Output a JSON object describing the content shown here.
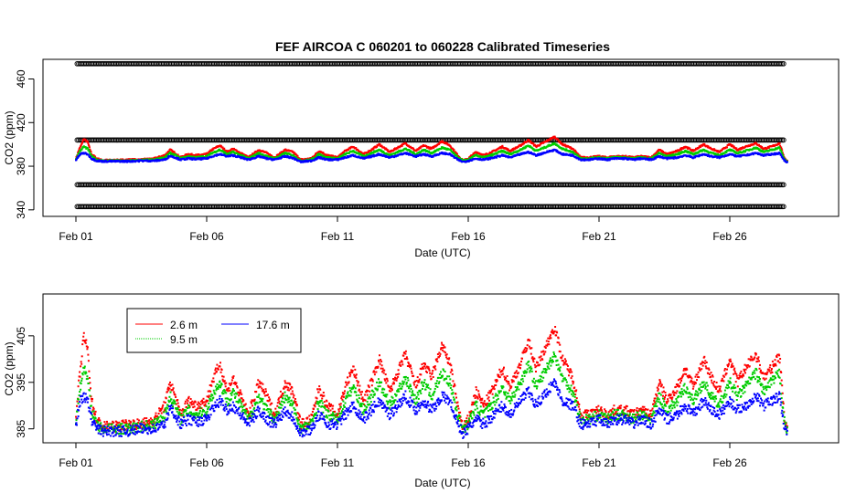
{
  "title": "FEF   AIRCOA  C    060201  to  060228   Calibrated Timeseries",
  "colors": {
    "red": "#ff0000",
    "green": "#00cc00",
    "blue": "#0000ff",
    "black": "#000000"
  },
  "chart_data": [
    {
      "type": "scatter",
      "id": "top",
      "title": "FEF   AIRCOA  C    060201  to  060228   Calibrated Timeseries",
      "xlabel": "Date (UTC)",
      "ylabel": "CO2 (ppm)",
      "xlim": [
        1,
        29
      ],
      "ylim": [
        334,
        478
      ],
      "xticks": [
        1,
        6,
        11,
        16,
        21,
        26
      ],
      "xtick_labels": [
        "Feb 01",
        "Feb 06",
        "Feb 11",
        "Feb 16",
        "Feb 21",
        "Feb 26"
      ],
      "yticks": [
        340,
        380,
        420,
        460
      ],
      "ytick_labels": [
        "340",
        "380",
        "420",
        "460"
      ],
      "calibration_levels": [
        343,
        363,
        404,
        474
      ],
      "calibration_x_range": [
        1.05,
        28.1
      ],
      "grid": false
    },
    {
      "type": "scatter",
      "id": "bottom",
      "xlabel": "Date (UTC)",
      "ylabel": "CO2 (ppm)",
      "xlim": [
        1,
        29
      ],
      "ylim": [
        382,
        414
      ],
      "xticks": [
        1,
        6,
        11,
        16,
        21,
        26
      ],
      "xtick_labels": [
        "Feb 01",
        "Feb 06",
        "Feb 11",
        "Feb 16",
        "Feb 21",
        "Feb 26"
      ],
      "yticks": [
        385,
        395,
        405
      ],
      "ytick_labels": [
        "385",
        "395",
        "405"
      ],
      "grid": false,
      "legend": {
        "placement": "top-left",
        "entries": [
          {
            "label": "2.6 m",
            "color": "#ff0000"
          },
          {
            "label": "9.5 m",
            "color": "#00cc00"
          },
          {
            "label": "17.6 m",
            "color": "#0000ff"
          }
        ]
      },
      "series": [
        {
          "name": "17.6 m",
          "color": "#0000ff",
          "x": [
            1.0,
            1.1,
            1.2,
            1.3,
            1.45,
            1.6,
            1.8,
            2.0,
            2.5,
            3.0,
            3.5,
            4.0,
            4.4,
            4.6,
            4.8,
            5.0,
            5.3,
            5.6,
            6.0,
            6.2,
            6.5,
            6.8,
            7.0,
            7.3,
            7.6,
            8.0,
            8.3,
            8.6,
            9.0,
            9.3,
            9.6,
            10.0,
            10.3,
            10.6,
            11.0,
            11.3,
            11.6,
            12.0,
            12.3,
            12.6,
            13.0,
            13.3,
            13.6,
            14.0,
            14.3,
            14.6,
            15.0,
            15.3,
            15.6,
            15.8,
            16.0,
            16.3,
            16.6,
            17.0,
            17.3,
            17.6,
            18.0,
            18.3,
            18.6,
            19.0,
            19.3,
            19.6,
            20.0,
            20.3,
            20.6,
            21.0,
            21.3,
            21.6,
            22.0,
            22.3,
            22.6,
            23.0,
            23.3,
            23.6,
            24.0,
            24.3,
            24.6,
            25.0,
            25.3,
            25.6,
            26.0,
            26.3,
            26.6,
            27.0,
            27.3,
            27.6,
            27.9,
            28.1,
            28.2
          ],
          "y": [
            385.5,
            389,
            391.5,
            392,
            391,
            387,
            385,
            384.5,
            384.5,
            384.5,
            385,
            385,
            386,
            389.5,
            388,
            386,
            387,
            386.5,
            387,
            389,
            391,
            389,
            390,
            388,
            386,
            389,
            387,
            386,
            389,
            387.5,
            384,
            385,
            388,
            386,
            386,
            388,
            390,
            387,
            389,
            391,
            388,
            390,
            392,
            389,
            391,
            389,
            392,
            391,
            386,
            384,
            385,
            387,
            386,
            388,
            390,
            388,
            391,
            393,
            390,
            393,
            395,
            391,
            390,
            386,
            386,
            387,
            386,
            387,
            387,
            386,
            387,
            386,
            389,
            387,
            388,
            390,
            388,
            391,
            389,
            388,
            391,
            389,
            390,
            392,
            390,
            391,
            392,
            385,
            384
          ]
        },
        {
          "name": "9.5 m",
          "color": "#00cc00",
          "x": [
            1.0,
            1.1,
            1.2,
            1.3,
            1.45,
            1.6,
            1.8,
            2.0,
            2.5,
            3.0,
            3.5,
            4.0,
            4.4,
            4.6,
            4.8,
            5.0,
            5.3,
            5.6,
            6.0,
            6.2,
            6.5,
            6.8,
            7.0,
            7.3,
            7.6,
            8.0,
            8.3,
            8.6,
            9.0,
            9.3,
            9.6,
            10.0,
            10.3,
            10.6,
            11.0,
            11.3,
            11.6,
            12.0,
            12.3,
            12.6,
            13.0,
            13.3,
            13.6,
            14.0,
            14.3,
            14.6,
            15.0,
            15.3,
            15.6,
            15.8,
            16.0,
            16.3,
            16.6,
            17.0,
            17.3,
            17.6,
            18.0,
            18.3,
            18.6,
            19.0,
            19.3,
            19.6,
            20.0,
            20.3,
            20.6,
            21.0,
            21.3,
            21.6,
            22.0,
            22.3,
            22.6,
            23.0,
            23.3,
            23.6,
            24.0,
            24.3,
            24.6,
            25.0,
            25.3,
            25.6,
            26.0,
            26.3,
            26.6,
            27.0,
            27.3,
            27.6,
            27.9,
            28.1,
            28.2
          ],
          "y": [
            386,
            392,
            395,
            398,
            396,
            389,
            386,
            385,
            385,
            385,
            385.5,
            386,
            388,
            392,
            390,
            387,
            389,
            388,
            389,
            392,
            395,
            391,
            393,
            390,
            387,
            392,
            389,
            387,
            392,
            390,
            385,
            386,
            391,
            388,
            387,
            391,
            394,
            389,
            392,
            395,
            390,
            393,
            396,
            391,
            395,
            392,
            397,
            395,
            388,
            385,
            386,
            390,
            388,
            391,
            394,
            391,
            395,
            399,
            394,
            398,
            401,
            396,
            393,
            387,
            387,
            388,
            387,
            388,
            388,
            387,
            388,
            387,
            392,
            389,
            391,
            394,
            391,
            395,
            392,
            390,
            395,
            392,
            394,
            397,
            393,
            395,
            397,
            386,
            384.5
          ]
        },
        {
          "name": "2.6 m",
          "color": "#ff0000",
          "x": [
            1.0,
            1.1,
            1.2,
            1.3,
            1.45,
            1.6,
            1.8,
            2.0,
            2.5,
            3.0,
            3.5,
            4.0,
            4.4,
            4.6,
            4.8,
            5.0,
            5.3,
            5.6,
            6.0,
            6.2,
            6.5,
            6.8,
            7.0,
            7.3,
            7.6,
            8.0,
            8.3,
            8.6,
            9.0,
            9.3,
            9.6,
            10.0,
            10.3,
            10.6,
            11.0,
            11.3,
            11.6,
            12.0,
            12.3,
            12.6,
            13.0,
            13.3,
            13.6,
            14.0,
            14.3,
            14.6,
            15.0,
            15.3,
            15.6,
            15.8,
            16.0,
            16.3,
            16.6,
            17.0,
            17.3,
            17.6,
            18.0,
            18.3,
            18.6,
            19.0,
            19.3,
            19.6,
            20.0,
            20.3,
            20.6,
            21.0,
            21.3,
            21.6,
            22.0,
            22.3,
            22.6,
            23.0,
            23.3,
            23.6,
            24.0,
            24.3,
            24.6,
            25.0,
            25.3,
            25.6,
            26.0,
            26.3,
            26.6,
            27.0,
            27.3,
            27.6,
            27.9,
            28.1,
            28.2
          ],
          "y": [
            386.5,
            394,
            399,
            405,
            402,
            391,
            387,
            385.5,
            385.5,
            386,
            386,
            387,
            390,
            395,
            392,
            388,
            391,
            390,
            391,
            395,
            399,
            393,
            396,
            392,
            388,
            395,
            392,
            388,
            395,
            393,
            386,
            387,
            394,
            390,
            388,
            394,
            398,
            391,
            395,
            400,
            393,
            397,
            401,
            394,
            399,
            396,
            403,
            399,
            390,
            385,
            387,
            393,
            390,
            394,
            398,
            394,
            399,
            404,
            398,
            403,
            407,
            400,
            396,
            388,
            388,
            389,
            388,
            389,
            389,
            388,
            389,
            388,
            395,
            391,
            394,
            398,
            394,
            400,
            396,
            393,
            400,
            395,
            398,
            401,
            396,
            398,
            401,
            387,
            385
          ]
        }
      ]
    }
  ]
}
